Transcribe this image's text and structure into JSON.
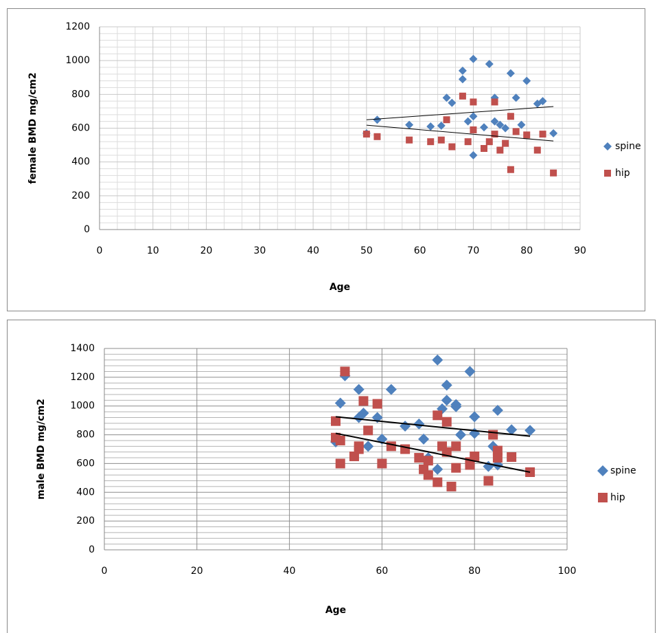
{
  "chart_data": [
    {
      "type": "scatter",
      "x_label": "Age",
      "y_label": "female BMD mg/cm2",
      "xlim": [
        0,
        90
      ],
      "xticks": [
        0,
        10,
        20,
        30,
        40,
        50,
        60,
        70,
        80,
        90
      ],
      "ylim": [
        0,
        1200
      ],
      "yticks": [
        0,
        200,
        400,
        600,
        800,
        1000,
        1200
      ],
      "grid": true,
      "legend": "right",
      "series": [
        {
          "name": "spine",
          "color": "#4f81bd",
          "marker": "diamond",
          "x": [
            50,
            52,
            58,
            62,
            64,
            65,
            66,
            68,
            68,
            69,
            70,
            70,
            70,
            72,
            73,
            74,
            74,
            75,
            76,
            77,
            78,
            79,
            80,
            82,
            83,
            85
          ],
          "values": [
            570,
            650,
            620,
            610,
            615,
            780,
            750,
            940,
            890,
            640,
            1010,
            670,
            440,
            605,
            980,
            780,
            640,
            620,
            600,
            925,
            780,
            620,
            880,
            745,
            760,
            570
          ],
          "trend": {
            "x": [
              50,
              85
            ],
            "values": [
              650,
              728
            ]
          }
        },
        {
          "name": "hip",
          "color": "#c0504d",
          "marker": "square",
          "x": [
            50,
            52,
            58,
            62,
            64,
            65,
            66,
            68,
            69,
            70,
            70,
            72,
            73,
            74,
            74,
            75,
            76,
            77,
            77,
            78,
            80,
            82,
            83,
            85
          ],
          "values": [
            565,
            550,
            530,
            520,
            530,
            650,
            490,
            790,
            520,
            755,
            590,
            480,
            520,
            755,
            565,
            470,
            510,
            670,
            355,
            580,
            560,
            470,
            565,
            335
          ],
          "trend": {
            "x": [
              50,
              85
            ],
            "values": [
              618,
              524
            ]
          }
        }
      ]
    },
    {
      "type": "scatter",
      "x_label": "Age",
      "y_label": "male BMD  mg/cm2",
      "xlim": [
        0,
        100
      ],
      "xticks": [
        0,
        20,
        40,
        60,
        80,
        100
      ],
      "ylim": [
        0,
        1400
      ],
      "yticks": [
        0,
        200,
        400,
        600,
        800,
        1000,
        1200,
        1400
      ],
      "grid": true,
      "legend": "right",
      "series": [
        {
          "name": "spine",
          "color": "#4f81bd",
          "marker": "diamond",
          "x": [
            50,
            51,
            52,
            55,
            55,
            56,
            57,
            59,
            60,
            62,
            65,
            68,
            69,
            70,
            72,
            72,
            73,
            74,
            74,
            76,
            76,
            77,
            79,
            80,
            80,
            83,
            84,
            85,
            85,
            88,
            92
          ],
          "values": [
            750,
            1020,
            1210,
            1115,
            920,
            950,
            720,
            920,
            770,
            1115,
            860,
            875,
            770,
            640,
            1320,
            560,
            980,
            1145,
            1040,
            1010,
            995,
            800,
            1240,
            925,
            810,
            580,
            720,
            970,
            590,
            835,
            830
          ],
          "trend": {
            "x": [
              50,
              92
            ],
            "values": [
              925,
              790
            ]
          }
        },
        {
          "name": "hip",
          "color": "#c0504d",
          "marker": "square",
          "x": [
            50,
            50,
            51,
            51,
            52,
            54,
            55,
            55,
            56,
            57,
            59,
            60,
            62,
            65,
            68,
            69,
            70,
            70,
            72,
            72,
            73,
            74,
            74,
            75,
            76,
            76,
            79,
            79,
            80,
            83,
            84,
            85,
            85,
            88,
            92
          ],
          "values": [
            895,
            780,
            760,
            600,
            1240,
            650,
            700,
            720,
            1035,
            830,
            1015,
            600,
            720,
            700,
            640,
            560,
            520,
            620,
            470,
            935,
            720,
            890,
            680,
            440,
            570,
            720,
            590,
            610,
            650,
            480,
            800,
            690,
            640,
            645,
            540
          ],
          "trend": {
            "x": [
              50,
              92
            ],
            "values": [
              810,
              540
            ]
          }
        }
      ]
    }
  ]
}
